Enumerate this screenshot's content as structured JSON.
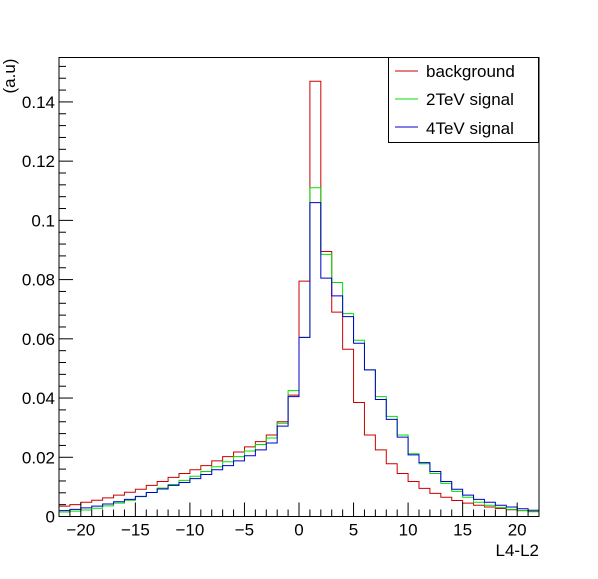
{
  "chart_data": {
    "type": "line",
    "title": "",
    "xlabel": "L4-L2",
    "ylabel": "(a.u)",
    "xlim": [
      -22,
      22
    ],
    "ylim": [
      0,
      0.155
    ],
    "grid": false,
    "legend_position": "top-right",
    "bin_edges": [
      -22,
      -21,
      -20,
      -19,
      -18,
      -17,
      -16,
      -15,
      -14,
      -13,
      -12,
      -11,
      -10,
      -9,
      -8,
      -7,
      -6,
      -5,
      -4,
      -3,
      -2,
      -1,
      0,
      1,
      2,
      3,
      4,
      5,
      6,
      7,
      8,
      9,
      10,
      11,
      12,
      13,
      14,
      15,
      16,
      17,
      18,
      19,
      20,
      21,
      22
    ],
    "x_ticks": [
      -20,
      -15,
      -10,
      -5,
      0,
      5,
      10,
      15,
      20
    ],
    "x_tick_labels": [
      "−20",
      "−15",
      "−10",
      "−5",
      "0",
      "5",
      "10",
      "15",
      "20"
    ],
    "y_ticks": [
      0,
      0.02,
      0.04,
      0.06,
      0.08,
      0.1,
      0.12,
      0.14
    ],
    "y_tick_labels": [
      "0",
      "0.02",
      "0.04",
      "0.06",
      "0.08",
      "0.1",
      "0.12",
      "0.14"
    ],
    "series": [
      {
        "name": "background",
        "color": "#cc0000",
        "values": [
          0.0035,
          0.004,
          0.0048,
          0.0055,
          0.0063,
          0.0072,
          0.0082,
          0.0092,
          0.0105,
          0.0118,
          0.0132,
          0.0145,
          0.0158,
          0.0172,
          0.0188,
          0.0202,
          0.0218,
          0.0235,
          0.0253,
          0.0275,
          0.032,
          0.041,
          0.0795,
          0.147,
          0.0895,
          0.069,
          0.0565,
          0.0385,
          0.0275,
          0.0225,
          0.0178,
          0.0145,
          0.0118,
          0.0095,
          0.0078,
          0.0065,
          0.0054,
          0.0045,
          0.0038,
          0.0032,
          0.0027,
          0.0023,
          0.002,
          0.0017
        ]
      },
      {
        "name": "2TeV signal",
        "color": "#00e000",
        "values": [
          0.0015,
          0.0018,
          0.0022,
          0.0028,
          0.0036,
          0.0045,
          0.0055,
          0.0067,
          0.0081,
          0.0096,
          0.0108,
          0.0122,
          0.0136,
          0.0152,
          0.0168,
          0.0185,
          0.0202,
          0.0221,
          0.0243,
          0.0265,
          0.0315,
          0.0425,
          0.0605,
          0.111,
          0.0885,
          0.079,
          0.0685,
          0.0595,
          0.0495,
          0.0405,
          0.0338,
          0.0275,
          0.0212,
          0.0178,
          0.0145,
          0.0112,
          0.0085,
          0.0065,
          0.0048,
          0.0038,
          0.003,
          0.0024,
          0.002,
          0.0016
        ]
      },
      {
        "name": "4TeV signal",
        "color": "#0000cc",
        "values": [
          0.002,
          0.0024,
          0.0029,
          0.0035,
          0.0042,
          0.005,
          0.0058,
          0.0068,
          0.0081,
          0.0093,
          0.0105,
          0.0115,
          0.0128,
          0.0142,
          0.0158,
          0.0172,
          0.0188,
          0.0205,
          0.0225,
          0.0248,
          0.0305,
          0.0405,
          0.0605,
          0.106,
          0.0805,
          0.0745,
          0.0675,
          0.0585,
          0.0495,
          0.0395,
          0.0328,
          0.0268,
          0.0208,
          0.0182,
          0.0152,
          0.0118,
          0.0092,
          0.0072,
          0.0058,
          0.0048,
          0.0038,
          0.0032,
          0.0026,
          0.0021
        ]
      }
    ]
  }
}
